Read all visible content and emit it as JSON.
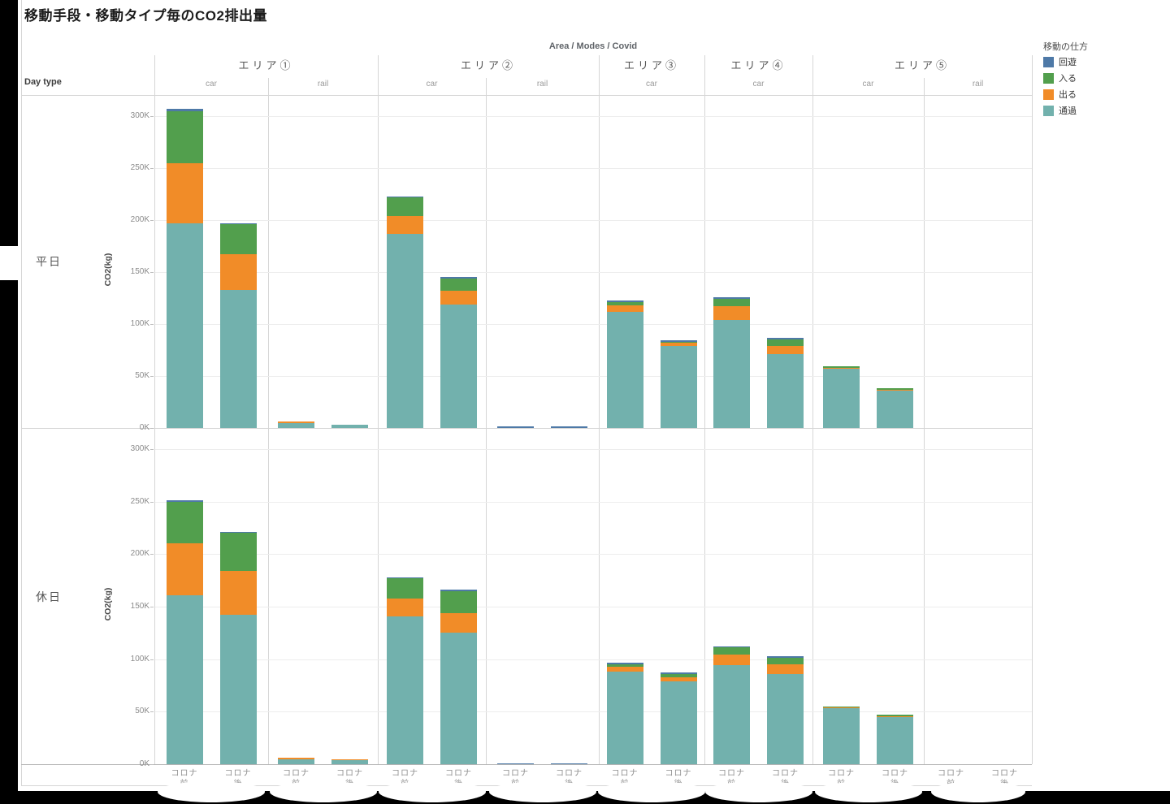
{
  "page": {
    "title": "移動手段・移動タイプ毎のCO2排出量"
  },
  "chart_data": {
    "type": "bar",
    "stacked": true,
    "title": "移動手段・移動タイプ毎のCO2排出量",
    "facet_header": "Area / Modes / Covid",
    "row_header": "Day type",
    "rows": [
      "平日",
      "休日"
    ],
    "covid": [
      "コロナ前",
      "コロナ後"
    ],
    "ylabel": "CO2(kg)",
    "yticks": [
      "300K",
      "250K",
      "200K",
      "150K",
      "100K",
      "50K",
      "0K"
    ],
    "ylim_k": [
      0,
      320
    ],
    "grid": true,
    "legend": {
      "title": "移動の仕方",
      "position": "top-right",
      "items": [
        {
          "label": "回遊",
          "color": "#4e79a7"
        },
        {
          "label": "入る",
          "color": "#529f4d"
        },
        {
          "label": "出る",
          "color": "#f18c28"
        },
        {
          "label": "通過",
          "color": "#72b1ad"
        }
      ]
    },
    "stack_order_bottom_to_top": [
      "通過",
      "出る",
      "入る",
      "回遊"
    ],
    "units": "K kg CO2",
    "areas": [
      {
        "label": "エリア①",
        "panels": [
          {
            "mode": "car",
            "bars": {
              "平日": {
                "コロナ前": {
                  "通過": 197,
                  "出る": 58,
                  "入る": 50,
                  "回遊": 2
                },
                "コロナ後": {
                  "通過": 133,
                  "出る": 34,
                  "入る": 29,
                  "回遊": 1
                }
              },
              "休日": {
                "コロナ前": {
                  "通過": 161,
                  "出る": 49,
                  "入る": 40,
                  "回遊": 1.5
                },
                "コロナ後": {
                  "通過": 142,
                  "出る": 42,
                  "入る": 36,
                  "回遊": 1.5
                }
              }
            }
          },
          {
            "mode": "rail",
            "bars": {
              "平日": {
                "コロナ前": {
                  "通過": 5,
                  "出る": 1
                },
                "コロナ後": {
                  "通過": 3
                }
              },
              "休日": {
                "コロナ前": {
                  "通過": 5,
                  "出る": 1
                },
                "コロナ後": {
                  "通過": 4,
                  "出る": 1
                }
              }
            }
          }
        ]
      },
      {
        "label": "エリア②",
        "panels": [
          {
            "mode": "car",
            "bars": {
              "平日": {
                "コロナ前": {
                  "通過": 187,
                  "出る": 17,
                  "入る": 18,
                  "回遊": 1
                },
                "コロナ後": {
                  "通過": 119,
                  "出る": 13,
                  "入る": 12,
                  "回遊": 1
                }
              },
              "休日": {
                "コロナ前": {
                  "通過": 141,
                  "出る": 17,
                  "入る": 19,
                  "回遊": 1
                },
                "コロナ後": {
                  "通過": 125,
                  "出る": 19,
                  "入る": 21,
                  "回遊": 1
                }
              }
            }
          },
          {
            "mode": "rail",
            "bars": {
              "平日": {
                "コロナ前": {
                  "回遊": 1.5
                },
                "コロナ後": {
                  "回遊": 1.5
                }
              },
              "休日": {
                "コロナ前": {
                  "回遊": 1
                },
                "コロナ後": {
                  "回遊": 1
                }
              }
            }
          }
        ]
      },
      {
        "label": "エリア③",
        "panels": [
          {
            "mode": "car",
            "bars": {
              "平日": {
                "コロナ前": {
                  "通過": 112,
                  "出る": 6,
                  "入る": 3,
                  "回遊": 1.5
                },
                "コロナ後": {
                  "通過": 79,
                  "出る": 3,
                  "入る": 1,
                  "回遊": 1
                }
              },
              "休日": {
                "コロナ前": {
                  "通過": 88,
                  "出る": 5,
                  "入る": 2,
                  "回遊": 1.5
                },
                "コロナ後": {
                  "通過": 79,
                  "出る": 4,
                  "入る": 3,
                  "回遊": 1
                }
              }
            }
          }
        ]
      },
      {
        "label": "エリア④",
        "panels": [
          {
            "mode": "car",
            "bars": {
              "平日": {
                "コロナ前": {
                  "通過": 104,
                  "出る": 13,
                  "入る": 7,
                  "回遊": 1.5
                },
                "コロナ後": {
                  "通過": 71,
                  "出る": 8,
                  "入る": 6,
                  "回遊": 1.5
                }
              },
              "休日": {
                "コロナ前": {
                  "通過": 94,
                  "出る": 10,
                  "入る": 7,
                  "回遊": 1.5
                },
                "コロナ後": {
                  "通過": 86,
                  "出る": 9,
                  "入る": 6,
                  "回遊": 1.5
                }
              }
            }
          }
        ]
      },
      {
        "label": "エリア⑤",
        "panels": [
          {
            "mode": "car",
            "bars": {
              "平日": {
                "コロナ前": {
                  "通過": 57,
                  "出る": 1,
                  "入る": 1
                },
                "コロナ後": {
                  "通過": 36,
                  "出る": 1,
                  "入る": 1
                }
              },
              "休日": {
                "コロナ前": {
                  "通過": 53,
                  "出る": 1,
                  "入る": 1
                },
                "コロナ後": {
                  "通過": 45,
                  "出る": 1,
                  "入る": 1
                }
              }
            }
          },
          {
            "mode": "rail",
            "bars": {
              "平日": {},
              "休日": {}
            }
          }
        ]
      }
    ]
  }
}
